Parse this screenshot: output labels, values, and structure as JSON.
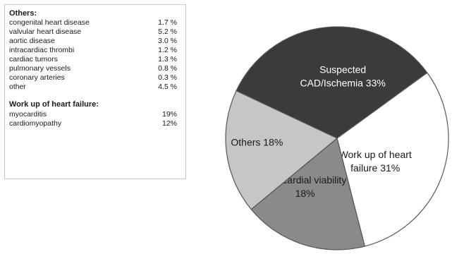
{
  "legend": {
    "others_title": "Others:",
    "others_items": [
      {
        "name": "congenital heart disease",
        "value": "1.7 %"
      },
      {
        "name": "valvular heart disease",
        "value": "5.2 %"
      },
      {
        "name": "aortic disease",
        "value": "3.0 %"
      },
      {
        "name": "intracardiac thrombi",
        "value": "1.2 %"
      },
      {
        "name": "cardiac tumors",
        "value": "1.3 %"
      },
      {
        "name": "pulmonary  vessels",
        "value": "0.8 %"
      },
      {
        "name": "coronary arteries",
        "value": "0.3 %"
      },
      {
        "name": "other",
        "value": "4.5 %"
      }
    ],
    "hf_title": "Work up of heart failure:",
    "hf_items": [
      {
        "name": "myocarditis",
        "value": "19%"
      },
      {
        "name": "cardiomyopathy",
        "value": "12%"
      }
    ]
  },
  "chart_data": {
    "type": "pie",
    "slices": [
      {
        "label_lines": [
          "Suspected",
          "CAD/Ischemia 33%"
        ],
        "value": 33,
        "color": "#3b3b3b",
        "text_color": "#ffffff"
      },
      {
        "label_lines": [
          "Work up of heart",
          "failure 31%"
        ],
        "value": 31,
        "color": "#ffffff",
        "text_color": "#1a1a1a"
      },
      {
        "label_lines": [
          "Myocardial  viability",
          "18%"
        ],
        "value": 18,
        "color": "#8a8a8a",
        "text_color": "#1a1a1a"
      },
      {
        "label_lines": [
          "Others 18%"
        ],
        "value": 18,
        "color": "#c6c6c6",
        "text_color": "#1a1a1a"
      }
    ]
  }
}
